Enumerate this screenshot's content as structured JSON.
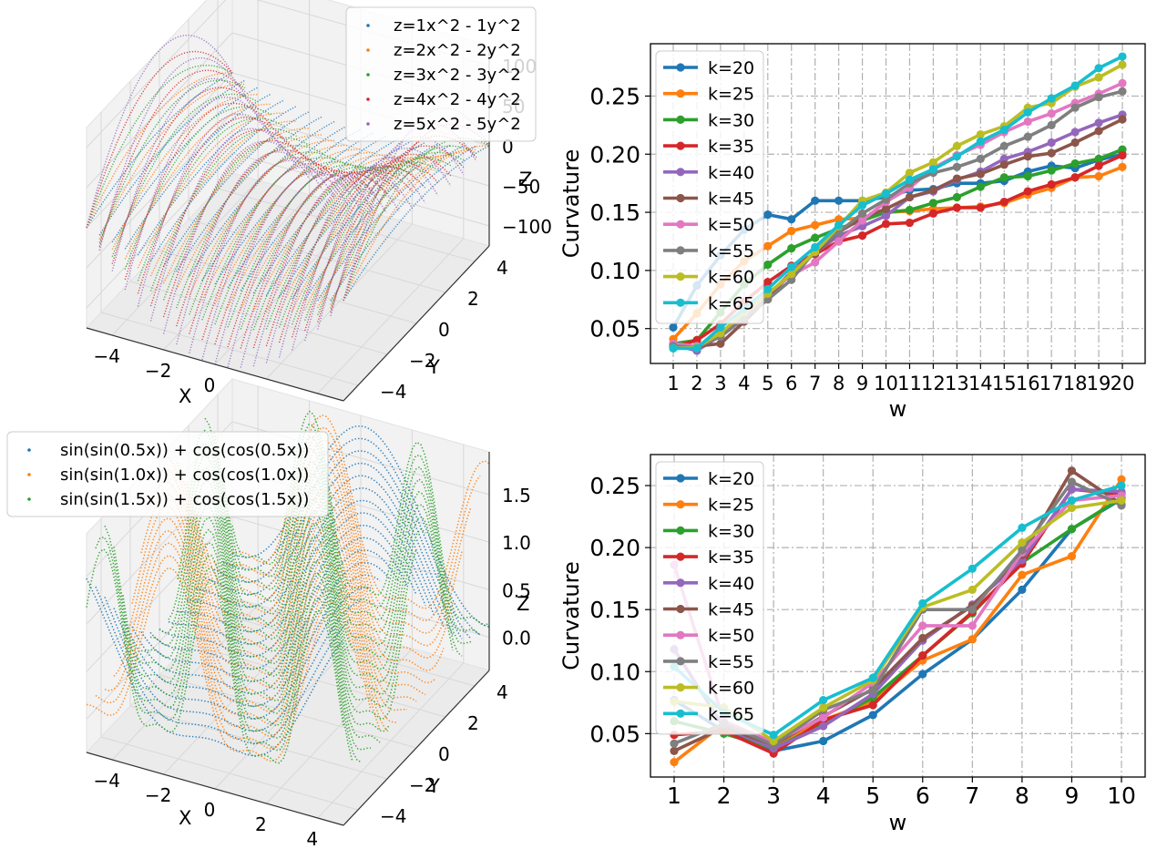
{
  "colors": {
    "tab": [
      "#1f77b4",
      "#ff7f0e",
      "#2ca02c",
      "#d62728",
      "#9467bd",
      "#8c564b",
      "#e377c2",
      "#7f7f7f",
      "#bcbd22",
      "#17becf"
    ],
    "grid": "#b0b0b0",
    "pane": "#f2f2f2",
    "pane_grid": "#d8d8d8"
  },
  "chart_data": [
    {
      "type": "scatter3d",
      "title": "",
      "xlabel": "X",
      "ylabel": "Y",
      "zlabel": "Z",
      "x_ticks": [
        "−4",
        "−2",
        "0",
        "2",
        "4"
      ],
      "y_ticks": [
        "−4",
        "−2",
        "0",
        "2",
        "4"
      ],
      "z_ticks": [
        "−100",
        "−50",
        "0",
        "50",
        "100"
      ],
      "xlim": [
        -5,
        5
      ],
      "ylim": [
        -5,
        5
      ],
      "zlim": [
        -125,
        125
      ],
      "legend_position": "top-right",
      "series": [
        {
          "name": "z=1x^2 - 1y^2",
          "coef": 1
        },
        {
          "name": "z=2x^2 - 2y^2",
          "coef": 2
        },
        {
          "name": "z=3x^2 - 3y^2",
          "coef": 3
        },
        {
          "name": "z=4x^2 - 4y^2",
          "coef": 4
        },
        {
          "name": "z=5x^2 - 5y^2",
          "coef": 5
        }
      ]
    },
    {
      "type": "line",
      "title": "",
      "xlabel": "w",
      "ylabel": "Curvature",
      "categories": [
        "1",
        "2",
        "3",
        "4",
        "5",
        "6",
        "7",
        "8",
        "9",
        "10",
        "11",
        "12",
        "13",
        "14",
        "15",
        "16",
        "17",
        "18",
        "19",
        "20"
      ],
      "y_ticks": [
        "0.05",
        "0.10",
        "0.15",
        "0.20",
        "0.25"
      ],
      "ylim": [
        0.02,
        0.295
      ],
      "grid": true,
      "legend_position": "top-left",
      "series": [
        {
          "name": "k=20",
          "values": [
            0.051,
            0.087,
            0.113,
            0.135,
            0.148,
            0.144,
            0.16,
            0.16,
            0.16,
            0.163,
            0.169,
            0.17,
            0.175,
            0.175,
            0.177,
            0.185,
            0.19,
            0.188,
            0.195,
            0.2
          ]
        },
        {
          "name": "k=25",
          "values": [
            0.041,
            0.063,
            0.088,
            0.108,
            0.121,
            0.134,
            0.139,
            0.144,
            0.145,
            0.15,
            0.151,
            0.153,
            0.154,
            0.155,
            0.158,
            0.165,
            0.171,
            0.18,
            0.181,
            0.189
          ]
        },
        {
          "name": "k=30",
          "values": [
            0.037,
            0.04,
            0.064,
            0.088,
            0.105,
            0.119,
            0.128,
            0.136,
            0.143,
            0.15,
            0.152,
            0.158,
            0.163,
            0.172,
            0.18,
            0.181,
            0.186,
            0.192,
            0.196,
            0.204
          ]
        },
        {
          "name": "k=35",
          "values": [
            0.034,
            0.04,
            0.054,
            0.073,
            0.09,
            0.104,
            0.114,
            0.125,
            0.13,
            0.14,
            0.141,
            0.149,
            0.154,
            0.154,
            0.159,
            0.168,
            0.174,
            0.18,
            0.19,
            0.199
          ]
        },
        {
          "name": "k=40",
          "values": [
            0.036,
            0.031,
            0.044,
            0.059,
            0.078,
            0.099,
            0.115,
            0.13,
            0.138,
            0.147,
            0.163,
            0.168,
            0.178,
            0.185,
            0.196,
            0.202,
            0.21,
            0.219,
            0.227,
            0.234
          ]
        },
        {
          "name": "k=45",
          "values": [
            0.035,
            0.035,
            0.037,
            0.056,
            0.076,
            0.098,
            0.115,
            0.133,
            0.145,
            0.153,
            0.163,
            0.169,
            0.179,
            0.183,
            0.191,
            0.198,
            0.201,
            0.21,
            0.22,
            0.23
          ]
        },
        {
          "name": "k=50",
          "values": [
            0.037,
            0.035,
            0.044,
            0.061,
            0.08,
            0.096,
            0.107,
            0.125,
            0.143,
            0.159,
            0.171,
            0.188,
            0.199,
            0.208,
            0.219,
            0.228,
            0.235,
            0.244,
            0.252,
            0.261
          ]
        },
        {
          "name": "k=55",
          "values": [
            0.035,
            0.034,
            0.043,
            0.059,
            0.075,
            0.092,
            0.117,
            0.133,
            0.149,
            0.161,
            0.175,
            0.184,
            0.189,
            0.196,
            0.207,
            0.215,
            0.225,
            0.24,
            0.249,
            0.254
          ]
        },
        {
          "name": "k=60",
          "values": [
            0.033,
            0.034,
            0.046,
            0.064,
            0.08,
            0.097,
            0.116,
            0.138,
            0.16,
            0.167,
            0.184,
            0.193,
            0.207,
            0.217,
            0.224,
            0.24,
            0.244,
            0.258,
            0.266,
            0.277
          ]
        },
        {
          "name": "k=65",
          "values": [
            0.033,
            0.033,
            0.051,
            0.067,
            0.084,
            0.103,
            0.12,
            0.139,
            0.156,
            0.166,
            0.178,
            0.187,
            0.198,
            0.211,
            0.221,
            0.236,
            0.248,
            0.259,
            0.274,
            0.284
          ]
        }
      ]
    },
    {
      "type": "scatter3d",
      "title": "",
      "xlabel": "X",
      "ylabel": "Y",
      "zlabel": "Z",
      "x_ticks": [
        "−4",
        "−2",
        "0",
        "2",
        "4"
      ],
      "y_ticks": [
        "−4",
        "−2",
        "0",
        "2",
        "4"
      ],
      "z_ticks": [
        "0.0",
        "0.5",
        "1.0",
        "1.5"
      ],
      "xlim": [
        -5,
        5
      ],
      "ylim": [
        -5,
        5
      ],
      "zlim": [
        -0.35,
        1.95
      ],
      "legend_position": "top-left",
      "series": [
        {
          "name": "sin(sin(0.5x)) + cos(cos(0.5x))",
          "freq": 0.5
        },
        {
          "name": "sin(sin(1.0x)) + cos(cos(1.0x))",
          "freq": 1.0
        },
        {
          "name": "sin(sin(1.5x)) + cos(cos(1.5x))",
          "freq": 1.5
        }
      ]
    },
    {
      "type": "line",
      "title": "",
      "xlabel": "w",
      "ylabel": "Curvature",
      "categories": [
        "1",
        "2",
        "3",
        "4",
        "5",
        "6",
        "7",
        "8",
        "9",
        "10"
      ],
      "y_ticks": [
        "0.05",
        "0.10",
        "0.15",
        "0.20",
        "0.25"
      ],
      "ylim": [
        0.015,
        0.275
      ],
      "grid": true,
      "legend_position": "top-left",
      "series": [
        {
          "name": "k=20",
          "values": [
            0.077,
            0.052,
            0.036,
            0.044,
            0.065,
            0.098,
            0.126,
            0.166,
            0.215,
            0.239
          ]
        },
        {
          "name": "k=25",
          "values": [
            0.027,
            0.058,
            0.04,
            0.061,
            0.076,
            0.109,
            0.126,
            0.178,
            0.193,
            0.255
          ]
        },
        {
          "name": "k=30",
          "values": [
            0.06,
            0.05,
            0.038,
            0.058,
            0.079,
            0.113,
            0.147,
            0.188,
            0.215,
            0.24
          ]
        },
        {
          "name": "k=35",
          "values": [
            0.049,
            0.052,
            0.034,
            0.061,
            0.073,
            0.113,
            0.148,
            0.187,
            0.247,
            0.243
          ]
        },
        {
          "name": "k=40",
          "values": [
            0.118,
            0.055,
            0.038,
            0.056,
            0.082,
            0.125,
            0.154,
            0.19,
            0.247,
            0.245
          ]
        },
        {
          "name": "k=45",
          "values": [
            0.036,
            0.055,
            0.041,
            0.064,
            0.086,
            0.127,
            0.153,
            0.194,
            0.262,
            0.235
          ]
        },
        {
          "name": "k=50",
          "values": [
            0.186,
            0.06,
            0.043,
            0.063,
            0.091,
            0.137,
            0.137,
            0.196,
            0.238,
            0.242
          ]
        },
        {
          "name": "k=55",
          "values": [
            0.042,
            0.058,
            0.041,
            0.069,
            0.085,
            0.15,
            0.15,
            0.198,
            0.253,
            0.234
          ]
        },
        {
          "name": "k=60",
          "values": [
            0.076,
            0.071,
            0.044,
            0.071,
            0.093,
            0.152,
            0.166,
            0.204,
            0.232,
            0.238
          ]
        },
        {
          "name": "k=65",
          "values": [
            0.104,
            0.067,
            0.049,
            0.077,
            0.095,
            0.155,
            0.183,
            0.216,
            0.238,
            0.25
          ]
        }
      ]
    }
  ]
}
